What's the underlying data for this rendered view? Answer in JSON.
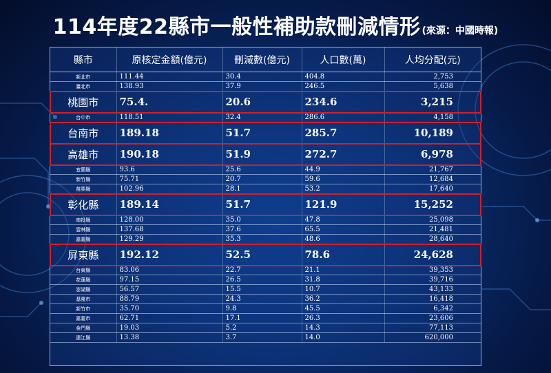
{
  "title": "114年度22縣市一般性補助款刪減情形",
  "source": "(來源：中國時報)",
  "columns": [
    "縣市",
    "原核定金額(億元)",
    "刪減數(億元)",
    "人口數(萬)",
    "人均分配(元)"
  ],
  "rows": [
    {
      "name": "新北市",
      "orig": "111.44",
      "cut": "30.4",
      "pop": "404.8",
      "per": "2,753",
      "highlight": false
    },
    {
      "name": "臺北市",
      "orig": "138.93",
      "cut": "37.9",
      "pop": "246.5",
      "per": "5,638",
      "highlight": false
    },
    {
      "name": "桃園市",
      "orig": "75.4.",
      "cut": "20.6",
      "pop": "234.6",
      "per": "3,215",
      "highlight": true
    },
    {
      "name": "台中市",
      "orig": "118.51",
      "cut": "32.4",
      "pop": "286.6",
      "per": "4,158",
      "highlight": false
    },
    {
      "name": "台南市",
      "orig": "189.18",
      "cut": "51.7",
      "pop": "285.7",
      "per": "10,189",
      "highlight": true
    },
    {
      "name": "高雄市",
      "orig": "190.18",
      "cut": "51.9",
      "pop": "272.7",
      "per": "6,978",
      "highlight": true
    },
    {
      "name": "宜蘭縣",
      "orig": "93.6",
      "cut": "25.6",
      "pop": "44.9",
      "per": "21,767",
      "highlight": false
    },
    {
      "name": "新竹縣",
      "orig": "75.71",
      "cut": "20.7",
      "pop": "59.6",
      "per": "12,684",
      "highlight": false
    },
    {
      "name": "苗栗縣",
      "orig": "102.96",
      "cut": "28.1",
      "pop": "53.2",
      "per": "17,640",
      "highlight": false
    },
    {
      "name": "彰化縣",
      "orig": "189.14",
      "cut": "51.7",
      "pop": "121.9",
      "per": "15,252",
      "highlight": true
    },
    {
      "name": "南投縣",
      "orig": "128.00",
      "cut": "35.0",
      "pop": "47.8",
      "per": "25,098",
      "highlight": false
    },
    {
      "name": "雲林縣",
      "orig": "137.68",
      "cut": "37.6",
      "pop": "65.5",
      "per": "21,481",
      "highlight": false
    },
    {
      "name": "嘉義縣",
      "orig": "129.29",
      "cut": "35.3",
      "pop": "48.6",
      "per": "28,640",
      "highlight": false
    },
    {
      "name": "屏東縣",
      "orig": "192.12",
      "cut": "52.5",
      "pop": "78.6",
      "per": "24,628",
      "highlight": true
    },
    {
      "name": "台東縣",
      "orig": "83.06",
      "cut": "22.7",
      "pop": "21.1",
      "per": "39,353",
      "highlight": false
    },
    {
      "name": "花蓮縣",
      "orig": "97.15",
      "cut": "26.5",
      "pop": "31.8",
      "per": "39,716",
      "highlight": false
    },
    {
      "name": "澎湖縣",
      "orig": "56.57",
      "cut": "15.5",
      "pop": "10.7",
      "per": "43,133",
      "highlight": false
    },
    {
      "name": "基隆市",
      "orig": "88.79",
      "cut": "24.3",
      "pop": "36.2",
      "per": "16,418",
      "highlight": false
    },
    {
      "name": "新竹市",
      "orig": "35.70",
      "cut": "9.8",
      "pop": "45.5",
      "per": "6,342",
      "highlight": false
    },
    {
      "name": "嘉義市",
      "orig": "62.71",
      "cut": "17.1",
      "pop": "26.3",
      "per": "23,606",
      "highlight": false
    },
    {
      "name": "金門縣",
      "orig": "19.03",
      "cut": "5.2",
      "pop": "14.3",
      "per": "77,113",
      "highlight": false
    },
    {
      "name": "連江縣",
      "orig": "13.38",
      "cut": "3.7",
      "pop": "14.0",
      "per": "620,000",
      "highlight": false
    }
  ],
  "colors": {
    "highlight_border": "#d1202a",
    "background": "#0a2f72",
    "text": "#ffffff"
  }
}
